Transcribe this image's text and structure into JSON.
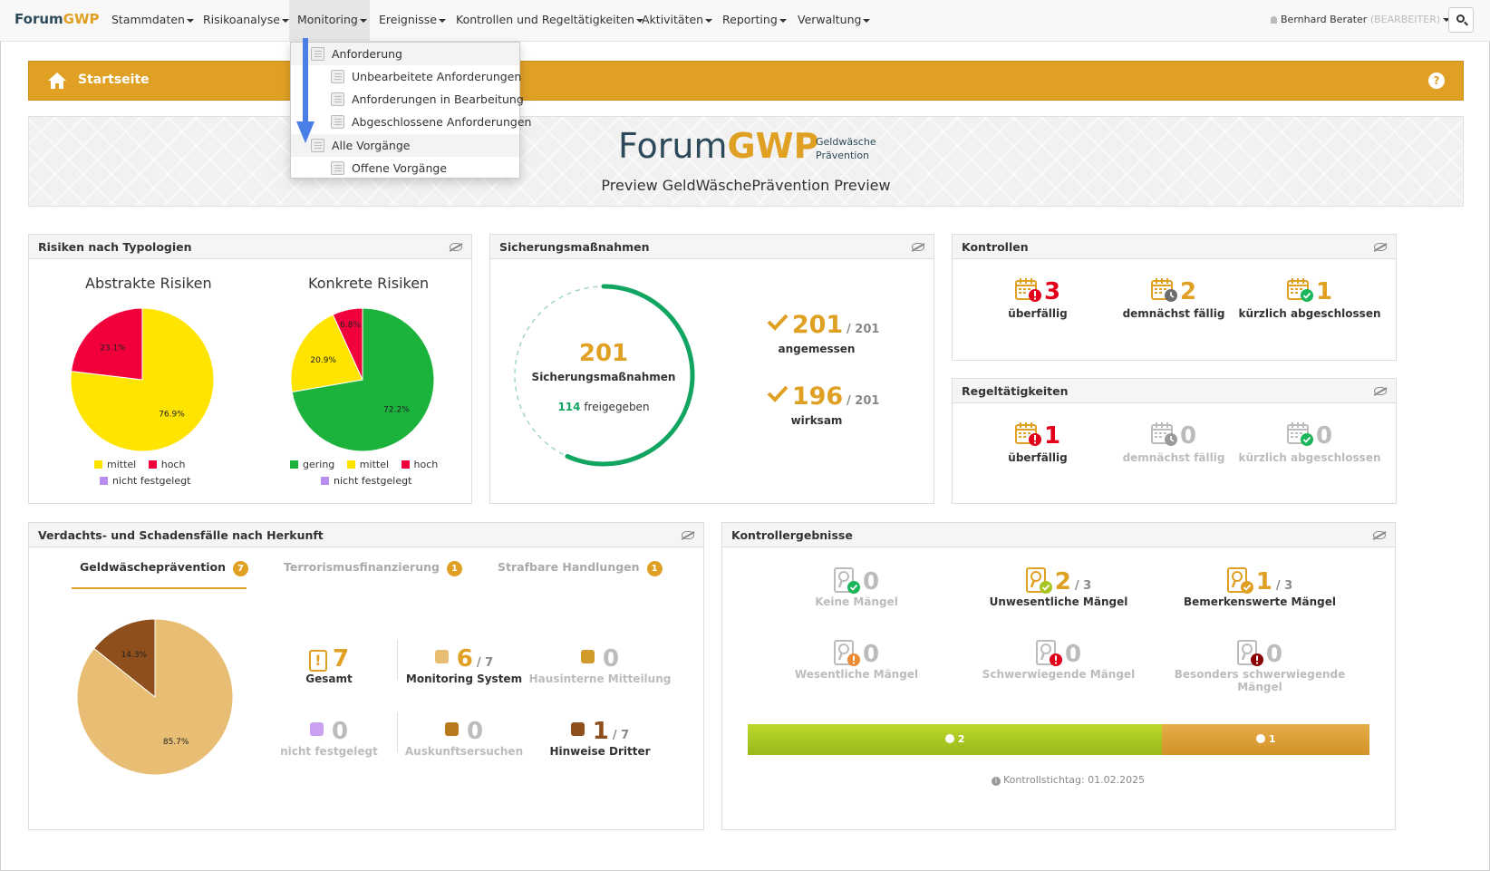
{
  "navbar": {
    "brand_a": "Forum",
    "brand_b": "GWP",
    "items": [
      "Stammdaten",
      "Risikoanalyse",
      "Monitoring",
      "Ereignisse",
      "Kontrollen und Regeltätigkeiten",
      "Aktivitäten",
      "Reporting",
      "Verwaltung"
    ],
    "user_name": "Bernhard Berater",
    "user_role": "(BEARBEITER)"
  },
  "dropdown": {
    "section1": "Anforderung",
    "items1": [
      "Unbearbeitete Anforderungen",
      "Anforderungen in Bearbeitung",
      "Abgeschlossene Anforderungen"
    ],
    "section2": "Alle Vorgänge",
    "items2": [
      "Offene Vorgänge"
    ]
  },
  "startbar": {
    "title": "Startseite",
    "help": "?"
  },
  "banner": {
    "logo_a": "Forum",
    "logo_b": "GWP",
    "logo_sub_1": "Geldwäsche",
    "logo_sub_2": "Prävention",
    "preview": "Preview GeldWäschePrävention Preview"
  },
  "risiken": {
    "title": "Risiken nach Typologien",
    "abstract_title": "Abstrakte Risiken",
    "concrete_title": "Konkrete Risiken",
    "legend": {
      "gering": "gering",
      "mittel": "mittel",
      "hoch": "hoch",
      "nf": "nicht festgelegt"
    }
  },
  "sicherung": {
    "title": "Sicherungsmaßnahmen",
    "total": "201",
    "total_label": "Sicherungsmaßnahmen",
    "freigegeben_num": "114",
    "freigegeben_label": "freigegeben",
    "freigegeben_fraction": 0.567,
    "angemessen_num": "201",
    "angemessen_of": "/ 201",
    "angemessen_label": "angemessen",
    "wirksam_num": "196",
    "wirksam_of": "/ 201",
    "wirksam_label": "wirksam"
  },
  "kontrollen": {
    "title": "Kontrollen",
    "items": [
      {
        "num": "3",
        "label": "überfällig"
      },
      {
        "num": "2",
        "label": "demnächst fällig"
      },
      {
        "num": "1",
        "label": "kürzlich abgeschlossen"
      }
    ]
  },
  "regel": {
    "title": "Regeltätigkeiten",
    "items": [
      {
        "num": "1",
        "label": "überfällig"
      },
      {
        "num": "0",
        "label": "demnächst fällig"
      },
      {
        "num": "0",
        "label": "kürzlich abgeschlossen"
      }
    ]
  },
  "verdacht": {
    "title": "Verdachts- und Schadensfälle nach Herkunft",
    "tabs": [
      {
        "label": "Geldwäscheprävention",
        "count": "7"
      },
      {
        "label": "Terrorismusfinanzierung",
        "count": "1"
      },
      {
        "label": "Strafbare Handlungen",
        "count": "1"
      }
    ],
    "stats": [
      {
        "num": "7",
        "of": "",
        "label": "Gesamt"
      },
      {
        "num": "6",
        "of": "/ 7",
        "label": "Monitoring System"
      },
      {
        "num": "0",
        "of": "",
        "label": "Hausinterne Mitteilung"
      },
      {
        "num": "0",
        "of": "",
        "label": "nicht festgelegt"
      },
      {
        "num": "0",
        "of": "",
        "label": "Auskunftsersuchen"
      },
      {
        "num": "1",
        "of": "/ 7",
        "label": "Hinweise Dritter"
      }
    ]
  },
  "kontrollergebnisse": {
    "title": "Kontrollergebnisse",
    "items": [
      {
        "num": "0",
        "of": "",
        "label": "Keine Mängel"
      },
      {
        "num": "2",
        "of": "/ 3",
        "label": "Unwesentliche Mängel"
      },
      {
        "num": "1",
        "of": "/ 3",
        "label": "Bemerkenswerte Mängel"
      },
      {
        "num": "0",
        "of": "",
        "label": "Wesentliche Mängel"
      },
      {
        "num": "0",
        "of": "",
        "label": "Schwerwiegende Mängel"
      },
      {
        "num": "0",
        "of": "",
        "label": "Besonders schwerwiegende"
      },
      {
        "num": "",
        "of": "",
        "label": "Mängel"
      }
    ],
    "bar": [
      {
        "value": 2,
        "label": "2"
      },
      {
        "value": 1,
        "label": "1"
      }
    ],
    "stichtag": "Kontrollstichtag: 01.02.2025"
  },
  "colors": {
    "accent": "#e0a024",
    "navy": "#2c4a5a",
    "green": "#1bb55a",
    "yellow": "#ffe400",
    "red": "#e2001a",
    "tan": "#e7be74",
    "brown": "#8e4f1c"
  },
  "chart_data": [
    {
      "type": "pie",
      "title": "Abstrakte Risiken",
      "categories": [
        "mittel",
        "hoch",
        "nicht festgelegt"
      ],
      "values": [
        76.9,
        23.1,
        0
      ],
      "labels": [
        "76.9%",
        "23.1%",
        ""
      ],
      "colors": [
        "#ffe400",
        "#f2003c",
        "#b98cf0"
      ],
      "legend": "bottom"
    },
    {
      "type": "pie",
      "title": "Konkrete Risiken",
      "categories": [
        "gering",
        "mittel",
        "hoch",
        "nicht festgelegt"
      ],
      "values": [
        72.2,
        20.9,
        6.8,
        0
      ],
      "labels": [
        "72.2%",
        "20.9%",
        "6.8%",
        ""
      ],
      "colors": [
        "#1bb33c",
        "#ffe400",
        "#f2003c",
        "#b98cf0"
      ],
      "legend": "bottom"
    },
    {
      "type": "pie",
      "title": "",
      "categories": [
        "Monitoring System",
        "Hinweise Dritter"
      ],
      "values": [
        85.7,
        14.3
      ],
      "labels": [
        "85.7%",
        "14.3%"
      ],
      "colors": [
        "#e7be74",
        "#8e4f1c"
      ]
    }
  ]
}
